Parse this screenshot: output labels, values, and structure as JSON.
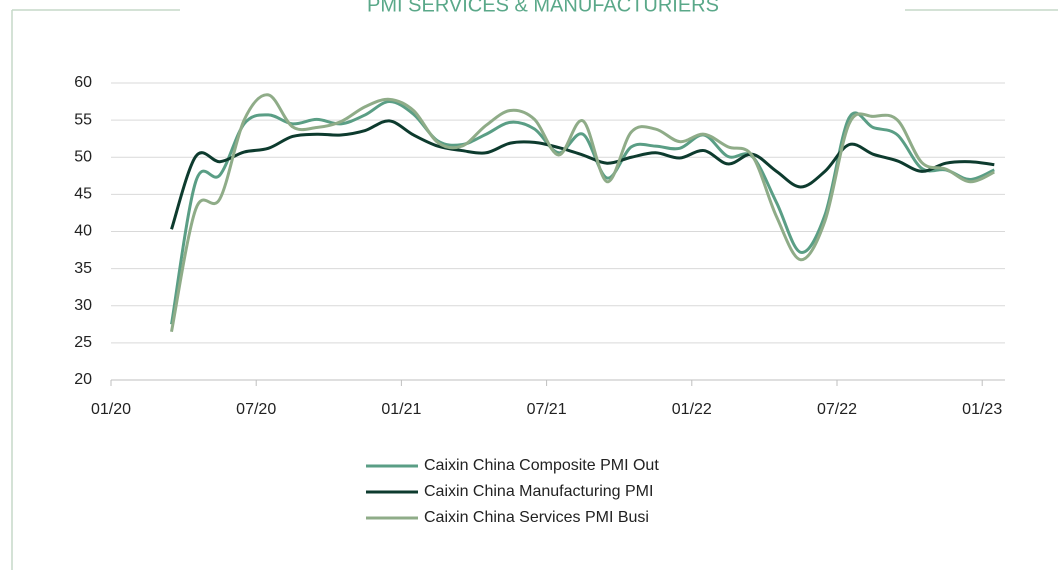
{
  "chart_data": {
    "type": "line",
    "title": "PMI SERVICES & MANUFACTURIERS",
    "x": [
      "2020-02",
      "2020-03",
      "2020-04",
      "2020-05",
      "2020-06",
      "2020-07",
      "2020-08",
      "2020-09",
      "2020-10",
      "2020-11",
      "2020-12",
      "2021-01",
      "2021-02",
      "2021-03",
      "2021-04",
      "2021-05",
      "2021-06",
      "2021-07",
      "2021-08",
      "2021-09",
      "2021-10",
      "2021-11",
      "2021-12",
      "2022-01",
      "2022-02",
      "2022-03",
      "2022-04",
      "2022-05",
      "2022-06",
      "2022-07",
      "2022-08",
      "2022-09",
      "2022-10",
      "2022-11",
      "2022-12"
    ],
    "series": [
      {
        "name": "Caixin China Composite PMI Out",
        "color": "#5a9e85",
        "values": [
          27.5,
          46.7,
          47.6,
          54.5,
          55.7,
          54.5,
          55.1,
          54.5,
          55.7,
          57.5,
          55.8,
          52.2,
          51.7,
          53.1,
          54.7,
          53.8,
          50.6,
          53.1,
          47.2,
          51.4,
          51.5,
          51.2,
          53.0,
          50.1,
          50.1,
          43.9,
          37.2,
          42.2,
          55.3,
          54.0,
          53.0,
          48.5,
          48.3,
          47.0,
          48.3
        ]
      },
      {
        "name": "Caixin China Manufacturing PMI",
        "color": "#0d3b2e",
        "values": [
          40.3,
          50.1,
          49.4,
          50.7,
          51.2,
          52.8,
          53.1,
          53.0,
          53.6,
          54.9,
          53.0,
          51.5,
          50.9,
          50.6,
          51.9,
          52.0,
          51.3,
          50.3,
          49.2,
          50.0,
          50.6,
          49.9,
          50.9,
          49.1,
          50.4,
          48.1,
          46.0,
          48.1,
          51.7,
          50.4,
          49.5,
          48.1,
          49.2,
          49.4,
          49.0
        ]
      },
      {
        "name": "Caixin China Services PMI Busi",
        "color": "#8fac88",
        "values": [
          26.5,
          43.0,
          44.4,
          55.0,
          58.4,
          54.1,
          54.0,
          54.8,
          56.8,
          57.8,
          56.3,
          52.0,
          51.5,
          54.3,
          56.3,
          55.1,
          50.3,
          54.9,
          46.7,
          53.4,
          53.8,
          52.1,
          53.1,
          51.4,
          50.2,
          42.0,
          36.2,
          41.4,
          54.5,
          55.5,
          55.0,
          49.3,
          48.4,
          46.7,
          48.0
        ]
      }
    ],
    "xticks": [
      {
        "value": "2020-01",
        "label": "01/20"
      },
      {
        "value": "2020-07",
        "label": "07/20"
      },
      {
        "value": "2021-01",
        "label": "01/21"
      },
      {
        "value": "2021-07",
        "label": "07/21"
      },
      {
        "value": "2022-01",
        "label": "01/22"
      },
      {
        "value": "2022-07",
        "label": "07/22"
      },
      {
        "value": "2023-01",
        "label": "01/23"
      }
    ],
    "ylim": [
      20,
      60
    ],
    "yticks": [
      20,
      25,
      30,
      35,
      40,
      45,
      50,
      55,
      60
    ],
    "grid": true,
    "legend": "bottom"
  }
}
